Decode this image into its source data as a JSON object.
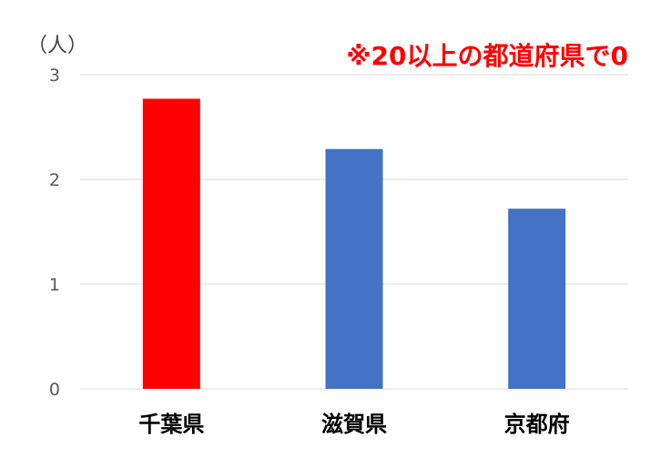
{
  "chart_data": {
    "type": "bar",
    "title": "",
    "unit_label": "（人）",
    "annotation": "※20以上の都道府県で0",
    "categories": [
      "千葉県",
      "滋賀県",
      "京都府"
    ],
    "values": [
      2.77,
      2.29,
      1.72
    ],
    "bar_colors": [
      "#ff0000",
      "#4472c4",
      "#4472c4"
    ],
    "ylim": [
      0,
      3
    ],
    "yticks": [
      0,
      1,
      2,
      3
    ],
    "grid": true,
    "legend": "none",
    "xlabel": "",
    "ylabel": ""
  },
  "colors": {
    "gridline": "#d9d9d9",
    "highlight": "#ff0000",
    "default_bar": "#4472c4"
  }
}
